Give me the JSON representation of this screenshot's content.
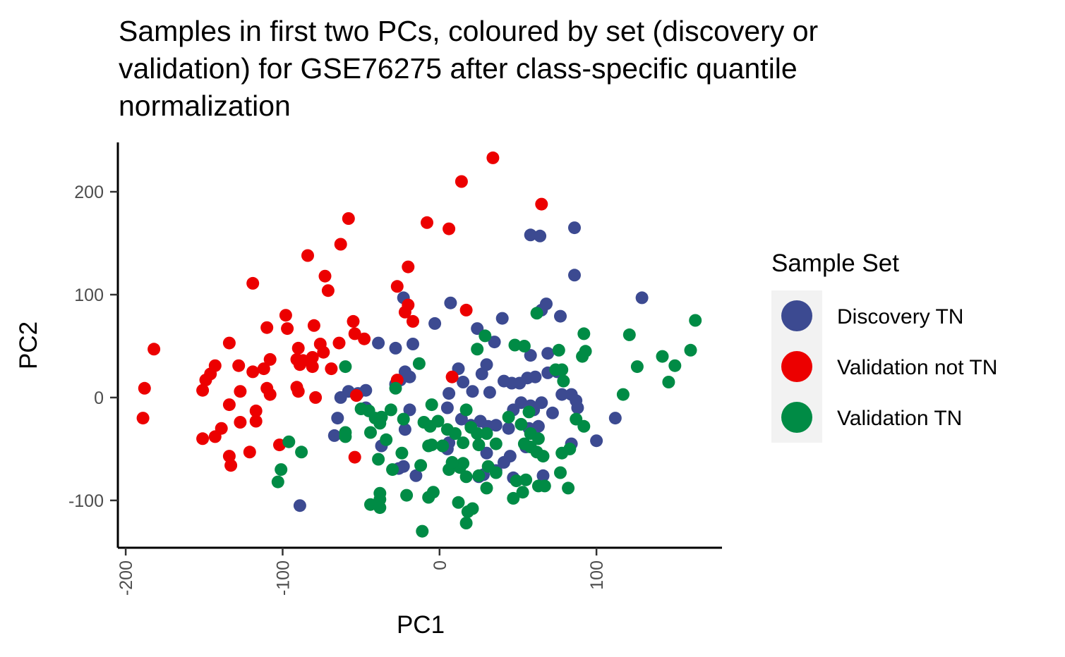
{
  "chart_data": {
    "type": "scatter",
    "title_lines": [
      "Samples in first two PCs, coloured by set (discovery or",
      "validation) for GSE76275 after class-specific quantile",
      "normalization"
    ],
    "xlabel": "PC1",
    "ylabel": "PC2",
    "xlim": [
      -205,
      180
    ],
    "ylim": [
      -146,
      248
    ],
    "xticks": [
      -200,
      -100,
      0,
      100
    ],
    "yticks": [
      -100,
      0,
      100,
      200
    ],
    "xtick_labels": [
      "-200",
      "-100",
      "0",
      "100"
    ],
    "ytick_labels": [
      "-100",
      "0",
      "100",
      "200"
    ],
    "grid": false,
    "legend": {
      "title": "Sample Set",
      "position": "right"
    },
    "series": [
      {
        "name": "Discovery TN",
        "color": "#3C4A91",
        "points": [
          [
            -23,
            97
          ],
          [
            -3,
            72
          ],
          [
            7,
            92
          ],
          [
            40,
            77
          ],
          [
            65,
            85
          ],
          [
            68,
            91
          ],
          [
            77,
            79
          ],
          [
            58,
            158
          ],
          [
            64,
            157
          ],
          [
            86,
            165
          ],
          [
            86,
            119
          ],
          [
            129,
            97
          ],
          [
            -39,
            53
          ],
          [
            -28,
            48
          ],
          [
            -17,
            52
          ],
          [
            24,
            67
          ],
          [
            35,
            54
          ],
          [
            58,
            41
          ],
          [
            69,
            43
          ],
          [
            -22,
            25
          ],
          [
            -19,
            20
          ],
          [
            -28,
            13
          ],
          [
            -25,
            17
          ],
          [
            6,
            4
          ],
          [
            12,
            28
          ],
          [
            27,
            23
          ],
          [
            30,
            32
          ],
          [
            15,
            15
          ],
          [
            21,
            6
          ],
          [
            32,
            5
          ],
          [
            41,
            16
          ],
          [
            46,
            14
          ],
          [
            51,
            14
          ],
          [
            56,
            19
          ],
          [
            61,
            20
          ],
          [
            69,
            24
          ],
          [
            75,
            25
          ],
          [
            78,
            3
          ],
          [
            84,
            3
          ],
          [
            -63,
            0
          ],
          [
            -58,
            6
          ],
          [
            -52,
            4
          ],
          [
            -47,
            7
          ],
          [
            -65,
            -20
          ],
          [
            -67,
            -37
          ],
          [
            -22,
            -31
          ],
          [
            -23,
            -67
          ],
          [
            -26,
            -69
          ],
          [
            -37,
            -47
          ],
          [
            -19,
            -12
          ],
          [
            5,
            -10
          ],
          [
            14,
            -21
          ],
          [
            20,
            -27
          ],
          [
            26,
            -23
          ],
          [
            31,
            -28
          ],
          [
            36,
            -27
          ],
          [
            44,
            -30
          ],
          [
            47,
            -12
          ],
          [
            52,
            -5
          ],
          [
            58,
            -8
          ],
          [
            60,
            -12
          ],
          [
            65,
            -5
          ],
          [
            72,
            -15
          ],
          [
            87,
            -3
          ],
          [
            88,
            -10
          ],
          [
            100,
            -42
          ],
          [
            112,
            -20
          ],
          [
            84,
            -45
          ],
          [
            55,
            -48
          ],
          [
            45,
            -57
          ],
          [
            41,
            -63
          ],
          [
            36,
            -71
          ],
          [
            28,
            -75
          ],
          [
            47,
            -78
          ],
          [
            66,
            -76
          ],
          [
            -15,
            -76
          ],
          [
            -89,
            -105
          ],
          [
            25,
            -77
          ],
          [
            5,
            -50
          ],
          [
            6,
            -44
          ],
          [
            2,
            -47
          ],
          [
            30,
            -54
          ],
          [
            57,
            -30
          ],
          [
            63,
            -28
          ],
          [
            -47,
            -10
          ]
        ]
      },
      {
        "name": "Validation not TN",
        "color": "#EC0000",
        "points": [
          [
            34,
            233
          ],
          [
            14,
            210
          ],
          [
            65,
            188
          ],
          [
            -58,
            174
          ],
          [
            -8,
            170
          ],
          [
            6,
            164
          ],
          [
            -63,
            149
          ],
          [
            -84,
            138
          ],
          [
            -73,
            118
          ],
          [
            -119,
            111
          ],
          [
            -71,
            104
          ],
          [
            -20,
            127
          ],
          [
            -27,
            108
          ],
          [
            -22,
            83
          ],
          [
            -20,
            90
          ],
          [
            17,
            85
          ],
          [
            -17,
            74
          ],
          [
            -98,
            80
          ],
          [
            -110,
            68
          ],
          [
            -97,
            67
          ],
          [
            -80,
            70
          ],
          [
            -55,
            74
          ],
          [
            -54,
            62
          ],
          [
            -48,
            57
          ],
          [
            -64,
            53
          ],
          [
            -134,
            53
          ],
          [
            -76,
            52
          ],
          [
            -90,
            48
          ],
          [
            -74,
            44
          ],
          [
            -108,
            37
          ],
          [
            -91,
            37
          ],
          [
            -87,
            36
          ],
          [
            -81,
            39
          ],
          [
            -81,
            30
          ],
          [
            -69,
            28
          ],
          [
            -143,
            31
          ],
          [
            -128,
            31
          ],
          [
            -119,
            25
          ],
          [
            -112,
            28
          ],
          [
            -89,
            32
          ],
          [
            -146,
            23
          ],
          [
            -149,
            17
          ],
          [
            -110,
            9
          ],
          [
            -108,
            3
          ],
          [
            -91,
            10
          ],
          [
            -90,
            6
          ],
          [
            -79,
            0
          ],
          [
            -53,
            2
          ],
          [
            -27,
            17
          ],
          [
            8,
            20
          ],
          [
            -182,
            47
          ],
          [
            -188,
            9
          ],
          [
            -151,
            7
          ],
          [
            -127,
            6
          ],
          [
            -134,
            -7
          ],
          [
            -117,
            -13
          ],
          [
            -117,
            -23
          ],
          [
            -127,
            -24
          ],
          [
            -139,
            -30
          ],
          [
            -151,
            -40
          ],
          [
            -143,
            -38
          ],
          [
            -121,
            -53
          ],
          [
            -134,
            -57
          ],
          [
            -133,
            -66
          ],
          [
            -102,
            -46
          ],
          [
            -54,
            -58
          ],
          [
            -189,
            -20
          ]
        ]
      },
      {
        "name": "Validation TN",
        "color": "#008B45",
        "points": [
          [
            62,
            82
          ],
          [
            29,
            60
          ],
          [
            24,
            47
          ],
          [
            48,
            51
          ],
          [
            54,
            50
          ],
          [
            76,
            46
          ],
          [
            74,
            27
          ],
          [
            78,
            27
          ],
          [
            79,
            16
          ],
          [
            92,
            62
          ],
          [
            91,
            40
          ],
          [
            93,
            45
          ],
          [
            121,
            61
          ],
          [
            126,
            30
          ],
          [
            117,
            3
          ],
          [
            142,
            40
          ],
          [
            146,
            15
          ],
          [
            150,
            31
          ],
          [
            163,
            75
          ],
          [
            160,
            46
          ],
          [
            -60,
            30
          ],
          [
            -13,
            33
          ],
          [
            -28,
            9
          ],
          [
            -5,
            -7
          ],
          [
            17,
            -12
          ],
          [
            -45,
            -13
          ],
          [
            -50,
            -11
          ],
          [
            -37,
            -19
          ],
          [
            -41,
            -20
          ],
          [
            -38,
            -25
          ],
          [
            -31,
            -12
          ],
          [
            -23,
            -21
          ],
          [
            -60,
            -34
          ],
          [
            -60,
            -38
          ],
          [
            -44,
            -34
          ],
          [
            -10,
            -24
          ],
          [
            -6,
            -28
          ],
          [
            -1,
            -23
          ],
          [
            5,
            -31
          ],
          [
            10,
            -35
          ],
          [
            20,
            -29
          ],
          [
            30,
            -35
          ],
          [
            15,
            -44
          ],
          [
            -7,
            -47
          ],
          [
            -5,
            -46
          ],
          [
            2,
            -47
          ],
          [
            25,
            -46
          ],
          [
            36,
            -45
          ],
          [
            54,
            -45
          ],
          [
            58,
            -35
          ],
          [
            63,
            -40
          ],
          [
            58,
            -48
          ],
          [
            62,
            -53
          ],
          [
            66,
            -57
          ],
          [
            78,
            -54
          ],
          [
            83,
            -50
          ],
          [
            87,
            -21
          ],
          [
            92,
            -28
          ],
          [
            57,
            -14
          ],
          [
            52,
            -26
          ],
          [
            44,
            -19
          ],
          [
            24,
            -35
          ],
          [
            -39,
            -60
          ],
          [
            -24,
            -54
          ],
          [
            -34,
            -41
          ],
          [
            -12,
            -66
          ],
          [
            6,
            -70
          ],
          [
            13,
            -68
          ],
          [
            15,
            -64
          ],
          [
            8,
            -63
          ],
          [
            17,
            -77
          ],
          [
            25,
            -76
          ],
          [
            31,
            -67
          ],
          [
            36,
            -73
          ],
          [
            49,
            -81
          ],
          [
            53,
            -92
          ],
          [
            63,
            -86
          ],
          [
            77,
            -73
          ],
          [
            82,
            -88
          ],
          [
            -38,
            -93
          ],
          [
            -38,
            -99
          ],
          [
            -44,
            -104
          ],
          [
            -38,
            -107
          ],
          [
            -21,
            -95
          ],
          [
            -7,
            -97
          ],
          [
            -4,
            -92
          ],
          [
            -11,
            -130
          ],
          [
            12,
            -102
          ],
          [
            17,
            -122
          ],
          [
            18,
            -111
          ],
          [
            21,
            -108
          ],
          [
            30,
            -88
          ],
          [
            47,
            -98
          ],
          [
            67,
            -86
          ],
          [
            -101,
            -70
          ],
          [
            -103,
            -82
          ],
          [
            -96,
            -43
          ],
          [
            -88,
            -53
          ],
          [
            -30,
            -70
          ],
          [
            55,
            -80
          ]
        ]
      }
    ]
  }
}
